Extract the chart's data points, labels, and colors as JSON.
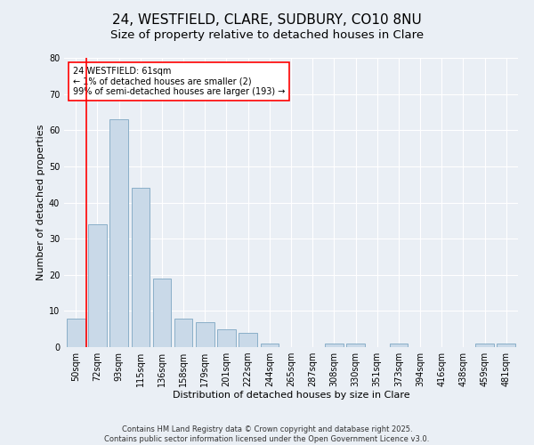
{
  "title": "24, WESTFIELD, CLARE, SUDBURY, CO10 8NU",
  "subtitle": "Size of property relative to detached houses in Clare",
  "xlabel": "Distribution of detached houses by size in Clare",
  "ylabel": "Number of detached properties",
  "categories": [
    "50sqm",
    "72sqm",
    "93sqm",
    "115sqm",
    "136sqm",
    "158sqm",
    "179sqm",
    "201sqm",
    "222sqm",
    "244sqm",
    "265sqm",
    "287sqm",
    "308sqm",
    "330sqm",
    "351sqm",
    "373sqm",
    "394sqm",
    "416sqm",
    "438sqm",
    "459sqm",
    "481sqm"
  ],
  "values": [
    8,
    34,
    63,
    44,
    19,
    8,
    7,
    5,
    4,
    1,
    0,
    0,
    1,
    1,
    0,
    1,
    0,
    0,
    0,
    1,
    1
  ],
  "bar_color": "#c9d9e8",
  "bar_edgecolor": "#8aafc8",
  "ylim": [
    0,
    80
  ],
  "yticks": [
    0,
    10,
    20,
    30,
    40,
    50,
    60,
    70,
    80
  ],
  "annotation_box_text": "24 WESTFIELD: 61sqm\n← 1% of detached houses are smaller (2)\n99% of semi-detached houses are larger (193) →",
  "vline_x_index": 0.5,
  "footer_line1": "Contains HM Land Registry data © Crown copyright and database right 2025.",
  "footer_line2": "Contains public sector information licensed under the Open Government Licence v3.0.",
  "background_color": "#eaeff5",
  "plot_background": "#eaeff5",
  "grid_color": "#ffffff",
  "title_fontsize": 11,
  "subtitle_fontsize": 9.5,
  "axis_label_fontsize": 8,
  "tick_fontsize": 7,
  "footer_fontsize": 6
}
